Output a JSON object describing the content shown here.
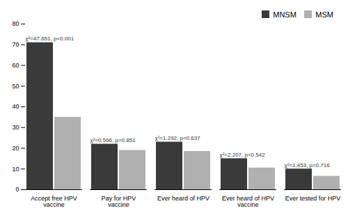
{
  "chart_data": {
    "type": "bar",
    "categories": [
      "Accept free HPV\nvaccine",
      "Pay for HPV\nvaccine",
      "Ever heard of HPV",
      "Ever heard of HPV\nvaccine",
      "Ever tested for HPV"
    ],
    "series": [
      {
        "name": "MNSM",
        "color": "#3a3a3a",
        "values": [
          71,
          22,
          23,
          15,
          10
        ]
      },
      {
        "name": "MSM",
        "color": "#b0b0b0",
        "values": [
          35,
          19,
          18.5,
          10.5,
          6.5
        ]
      }
    ],
    "annotations": [
      "χ²=47.651, p<0.001",
      "χ²=0.566, p=0.851",
      "χ²=1.292, p=0.637",
      "χ²=2.207, p=0.542",
      "χ²=1.453, p=0.716"
    ],
    "ylim": [
      0,
      80
    ],
    "yticks": [
      0,
      10,
      20,
      30,
      40,
      50,
      60,
      70,
      80
    ],
    "grid": false,
    "legend": "upper right"
  }
}
